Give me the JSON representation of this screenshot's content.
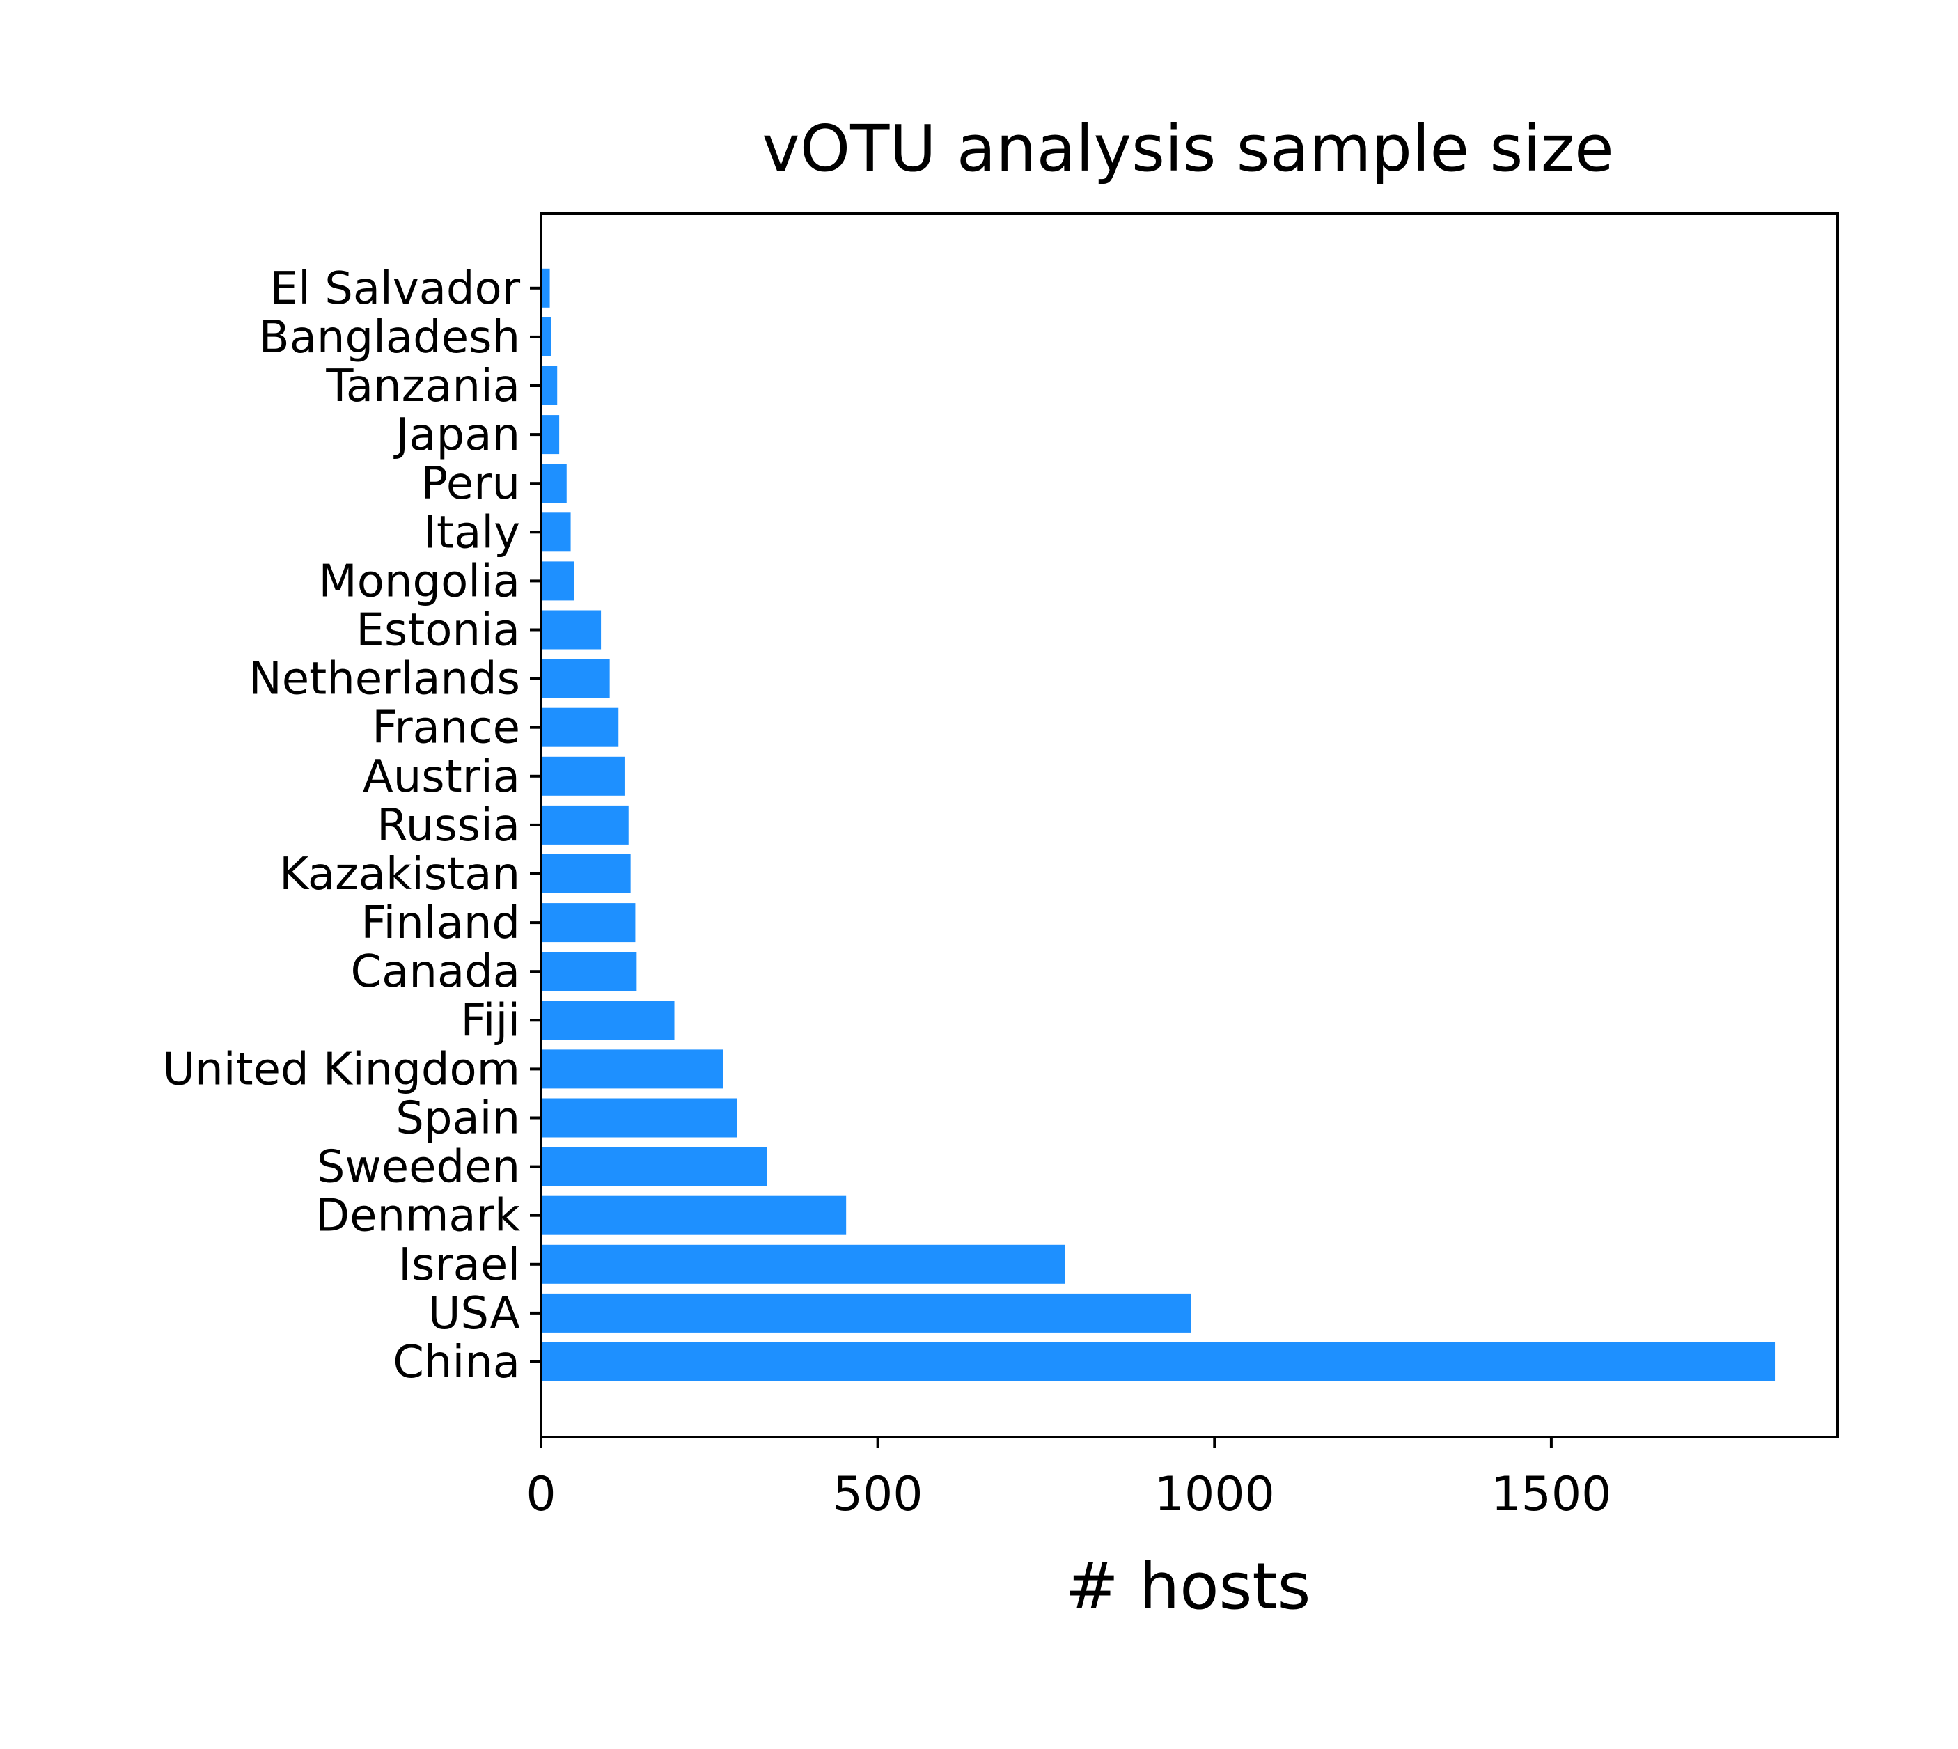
{
  "chart_data": {
    "type": "bar",
    "orientation": "horizontal",
    "title": "vOTU analysis sample size",
    "xlabel": "# hosts",
    "ylabel": "",
    "xlim": [
      0,
      1925
    ],
    "xticks": [
      0,
      500,
      1000,
      1500
    ],
    "xtick_labels": [
      "0",
      "500",
      "1000",
      "1500"
    ],
    "grid": false,
    "bar_color": "#1e90ff",
    "categories": [
      "China",
      "USA",
      "Israel",
      "Denmark",
      "Sweeden",
      "Spain",
      "United Kingdom",
      "Fiji",
      "Canada",
      "Finland",
      "Kazakistan",
      "Russia",
      "Austria",
      "France",
      "Netherlands",
      "Estonia",
      "Mongolia",
      "Italy",
      "Peru",
      "Japan",
      "Tanzania",
      "Bangladesh",
      "El Salvador"
    ],
    "values": [
      1832,
      965,
      778,
      453,
      335,
      291,
      270,
      198,
      142,
      140,
      133,
      130,
      124,
      115,
      102,
      89,
      49,
      44,
      38,
      27,
      24,
      15,
      13
    ]
  }
}
